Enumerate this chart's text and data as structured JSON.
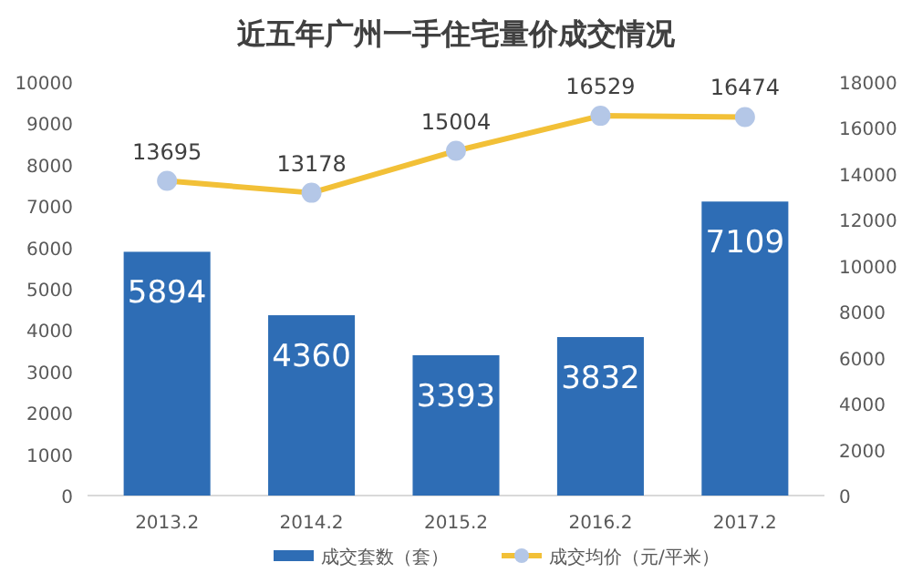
{
  "chart_data": {
    "type": "bar",
    "title": "近五年广州一手住宅量价成交情况",
    "categories": [
      "2013.2",
      "2014.2",
      "2015.2",
      "2016.2",
      "2017.2"
    ],
    "series": [
      {
        "name": "成交套数（套）",
        "color": "#2e6db5",
        "values": [
          5894,
          4360,
          3393,
          3832,
          7109
        ]
      },
      {
        "name": "成交均价（元/平米）",
        "type": "line",
        "axis": "y2",
        "color": "#f2c037",
        "marker": "circle",
        "values": [
          13695,
          13178,
          15004,
          16529,
          16474
        ]
      }
    ],
    "ylim": [
      0,
      10000
    ],
    "yticks": [
      0,
      1000,
      2000,
      3000,
      4000,
      5000,
      6000,
      7000,
      8000,
      9000,
      10000
    ],
    "y2lim": [
      0,
      18000
    ],
    "y2ticks": [
      0,
      2000,
      4000,
      6000,
      8000,
      10000,
      12000,
      14000,
      16000,
      18000
    ],
    "data_labels": true,
    "legend": "bottom",
    "grid": false
  }
}
